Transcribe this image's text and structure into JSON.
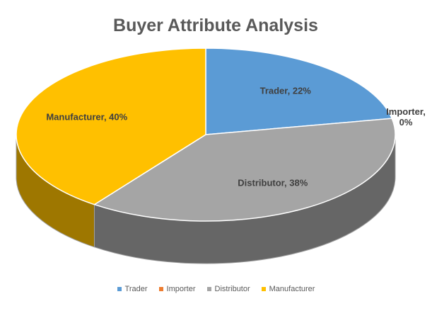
{
  "chart_data": {
    "type": "pie3d",
    "title": "Buyer Attribute Analysis",
    "categories": [
      "Trader",
      "Importer",
      "Distributor",
      "Manufacturer"
    ],
    "values": [
      22,
      0,
      38,
      40
    ],
    "value_labels": [
      "Trader, 22%",
      "Importer, 0%",
      "Distributor, 38%",
      "Manufacturer, 40%"
    ],
    "colors": [
      "#5b9bd5",
      "#ed7d31",
      "#a5a5a5",
      "#ffc000"
    ],
    "legend": "bottom"
  }
}
